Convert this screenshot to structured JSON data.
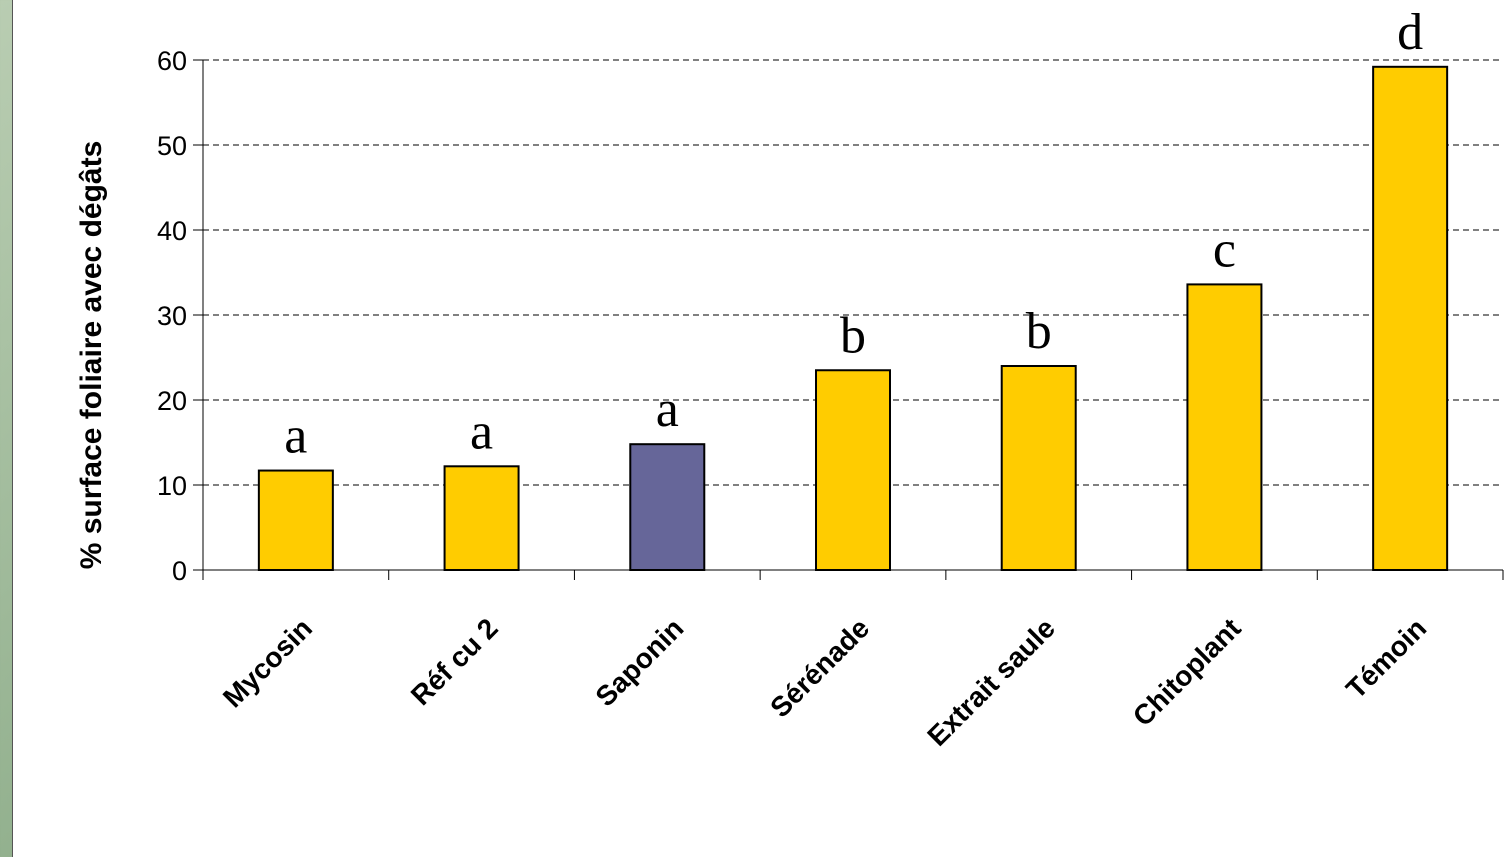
{
  "chart_data": {
    "type": "bar",
    "title": "",
    "xlabel": "",
    "ylabel": "% surface foliaire avec dégâts",
    "ylim": [
      0,
      60
    ],
    "yticks": [
      "0",
      "10",
      "20",
      "30",
      "40",
      "50",
      "60"
    ],
    "grid": "horizontal-dashed",
    "categories": [
      "Mycosin",
      "Réf cu 2",
      "Saponin",
      "Sérénade",
      "Extrait saule",
      "Chitoplant",
      "Témoin"
    ],
    "values": [
      11.7,
      12.2,
      14.8,
      23.5,
      24.0,
      33.6,
      59.2
    ],
    "significance_labels": [
      "a",
      "a",
      "a",
      "b",
      "b",
      "c",
      "d"
    ],
    "bar_colors": [
      "#ffcc00",
      "#ffcc00",
      "#666699",
      "#ffcc00",
      "#ffcc00",
      "#ffcc00",
      "#ffcc00"
    ]
  }
}
